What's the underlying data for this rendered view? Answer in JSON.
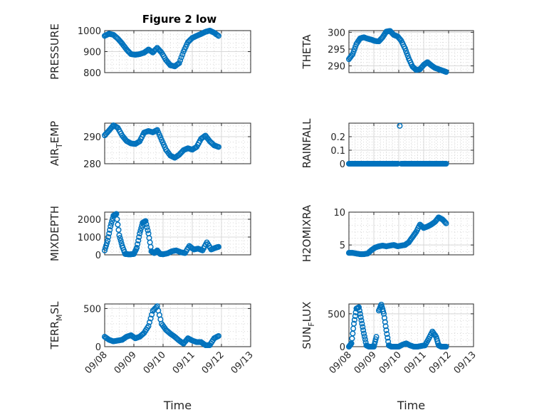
{
  "figure_title": "Figure 2 low",
  "colors": {
    "marker": "#0072BD",
    "axis": "#262626",
    "grid": "#d8d8d8",
    "background": "#ffffff"
  },
  "chart_data": [
    {
      "type": "scatter",
      "id": "pressure",
      "ylabel": {
        "main": "PRESSURE"
      },
      "ylim": [
        800,
        1000
      ],
      "yticks": [
        800,
        900,
        1000
      ],
      "yticklabels": [
        "800",
        "900",
        "1000"
      ],
      "xlim": [
        0,
        5
      ],
      "xticklabels": [
        "09/08",
        "09/09",
        "09/10",
        "09/11",
        "09/12",
        "09/13"
      ],
      "show_xticklabels": false,
      "xlabel": "",
      "grid": true,
      "x": [
        0,
        0.15,
        0.3,
        0.45,
        0.6,
        0.75,
        0.9,
        1.05,
        1.2,
        1.35,
        1.5,
        1.65,
        1.8,
        1.95,
        2.1,
        2.25,
        2.4,
        2.55,
        2.7,
        2.85,
        3.0,
        3.15,
        3.3,
        3.45,
        3.6,
        3.75,
        3.9
      ],
      "y": [
        975,
        985,
        980,
        962,
        938,
        910,
        888,
        885,
        888,
        895,
        910,
        896,
        918,
        895,
        860,
        835,
        830,
        845,
        900,
        945,
        965,
        975,
        984,
        994,
        1000,
        990,
        975
      ]
    },
    {
      "type": "scatter",
      "id": "theta",
      "ylabel": {
        "main": "THETA"
      },
      "ylim": [
        288,
        300.5
      ],
      "yticks": [
        290,
        295,
        300
      ],
      "yticklabels": [
        "290",
        "295",
        "300"
      ],
      "xlim": [
        0,
        5
      ],
      "xticklabels": [
        "09/08",
        "09/09",
        "09/10",
        "09/11",
        "09/12",
        "09/13"
      ],
      "show_xticklabels": false,
      "xlabel": "",
      "grid": true,
      "x": [
        0,
        0.15,
        0.3,
        0.45,
        0.6,
        0.75,
        0.9,
        1.05,
        1.2,
        1.35,
        1.5,
        1.65,
        1.8,
        1.95,
        2.1,
        2.25,
        2.4,
        2.55,
        2.7,
        2.85,
        3.0,
        3.15,
        3.3,
        3.45,
        3.6,
        3.75,
        3.9
      ],
      "y": [
        292,
        293.5,
        296.5,
        298.2,
        298.5,
        298.1,
        297.8,
        297.4,
        297.3,
        298.5,
        300.2,
        300.4,
        299.2,
        298.8,
        297.5,
        295.2,
        292.2,
        289.8,
        288.8,
        289,
        290.3,
        291.1,
        290.2,
        289.4,
        289,
        288.6,
        288.2
      ]
    },
    {
      "type": "scatter",
      "id": "air_temp",
      "ylabel": {
        "main": "AIR",
        "sub": "T",
        "rest": "EMP"
      },
      "ylim": [
        280,
        295
      ],
      "yticks": [
        280,
        290
      ],
      "yticklabels": [
        "280",
        "290"
      ],
      "xlim": [
        0,
        5
      ],
      "xticklabels": [
        "09/08",
        "09/09",
        "09/10",
        "09/11",
        "09/12",
        "09/13"
      ],
      "show_xticklabels": false,
      "xlabel": "",
      "grid": true,
      "x": [
        0,
        0.15,
        0.3,
        0.45,
        0.6,
        0.75,
        0.9,
        1.05,
        1.2,
        1.35,
        1.5,
        1.65,
        1.8,
        1.95,
        2.1,
        2.25,
        2.4,
        2.55,
        2.7,
        2.85,
        3.0,
        3.15,
        3.3,
        3.45,
        3.6,
        3.75,
        3.9
      ],
      "y": [
        290.5,
        292.3,
        294.2,
        293.3,
        290.4,
        288.4,
        287.5,
        287.3,
        288.3,
        291.5,
        292.1,
        291.6,
        292.5,
        288.8,
        285.2,
        283,
        282.2,
        283.3,
        285,
        285.7,
        285.2,
        286.2,
        289.2,
        290.4,
        288.3,
        286.8,
        286.2
      ]
    },
    {
      "type": "scatter",
      "id": "rainfall",
      "ylabel": {
        "main": "RAINFALL"
      },
      "ylim": [
        0,
        0.3
      ],
      "yticks": [
        0,
        0.1,
        0.2
      ],
      "yticklabels": [
        "0",
        "0.1",
        "0.2"
      ],
      "xlim": [
        0,
        5
      ],
      "xticklabels": [
        "09/08",
        "09/09",
        "09/10",
        "09/11",
        "09/12",
        "09/13"
      ],
      "show_xticklabels": false,
      "xlabel": "",
      "grid": true,
      "x": [
        0,
        0.15,
        0.3,
        0.45,
        0.6,
        0.75,
        0.9,
        1.05,
        1.2,
        1.35,
        1.5,
        1.65,
        1.8,
        1.95,
        2.04,
        2.1,
        2.25,
        2.4,
        2.55,
        2.7,
        2.85,
        3.0,
        3.15,
        3.3,
        3.45,
        3.6,
        3.75,
        3.9
      ],
      "y": [
        0,
        0,
        0,
        0,
        0,
        0,
        0,
        0,
        0,
        0,
        0,
        0,
        0,
        0,
        0.28,
        0,
        0,
        0,
        0,
        0,
        0,
        0,
        0,
        0,
        0,
        0,
        0,
        0
      ]
    },
    {
      "type": "scatter",
      "id": "mixdepth",
      "ylabel": {
        "main": "MIXDEPTH"
      },
      "ylim": [
        0,
        2400
      ],
      "yticks": [
        0,
        1000,
        2000
      ],
      "yticklabels": [
        "0",
        "1000",
        "2000"
      ],
      "xlim": [
        0,
        5
      ],
      "xticklabels": [
        "09/08",
        "09/09",
        "09/10",
        "09/11",
        "09/12",
        "09/13"
      ],
      "show_xticklabels": false,
      "xlabel": "",
      "grid": true,
      "x": [
        0,
        0.1,
        0.2,
        0.3,
        0.4,
        0.5,
        0.6,
        0.7,
        0.8,
        0.9,
        1.0,
        1.1,
        1.2,
        1.3,
        1.4,
        1.5,
        1.6,
        1.7,
        1.8,
        1.9,
        2.0,
        2.15,
        2.3,
        2.45,
        2.6,
        2.75,
        2.9,
        3.05,
        3.2,
        3.35,
        3.5,
        3.65,
        3.8,
        3.9
      ],
      "y": [
        250,
        800,
        1600,
        2200,
        2300,
        1100,
        500,
        50,
        30,
        30,
        50,
        400,
        1200,
        1800,
        1900,
        1200,
        200,
        100,
        250,
        50,
        30,
        80,
        200,
        250,
        150,
        100,
        500,
        300,
        350,
        250,
        700,
        300,
        400,
        450
      ]
    },
    {
      "type": "scatter",
      "id": "h2omixra",
      "ylabel": {
        "main": "H2OMIXRA"
      },
      "ylim": [
        3.5,
        10
      ],
      "yticks": [
        5,
        10
      ],
      "yticklabels": [
        "5",
        "10"
      ],
      "xlim": [
        0,
        5
      ],
      "xticklabels": [
        "09/08",
        "09/09",
        "09/10",
        "09/11",
        "09/12",
        "09/13"
      ],
      "show_xticklabels": false,
      "xlabel": "",
      "grid": true,
      "x": [
        0,
        0.15,
        0.3,
        0.45,
        0.6,
        0.75,
        0.9,
        1.05,
        1.2,
        1.35,
        1.5,
        1.65,
        1.8,
        1.95,
        2.1,
        2.25,
        2.4,
        2.55,
        2.7,
        2.85,
        3.0,
        3.15,
        3.3,
        3.45,
        3.6,
        3.75,
        3.9
      ],
      "y": [
        3.8,
        3.8,
        3.7,
        3.6,
        3.6,
        3.7,
        4.2,
        4.6,
        4.8,
        4.9,
        4.8,
        4.9,
        5.0,
        4.8,
        4.9,
        5.0,
        5.4,
        6.2,
        7.0,
        8.1,
        7.6,
        7.8,
        8.1,
        8.5,
        9.2,
        8.9,
        8.3
      ]
    },
    {
      "type": "scatter",
      "id": "terr_msl",
      "ylabel": {
        "main": "TERR",
        "sub": "M",
        "rest": "SL"
      },
      "ylim": [
        0,
        560
      ],
      "yticks": [
        0,
        500
      ],
      "yticklabels": [
        "0",
        "500"
      ],
      "xlim": [
        0,
        5
      ],
      "xticklabels": [
        "09/08",
        "09/09",
        "09/10",
        "09/11",
        "09/12",
        "09/13"
      ],
      "show_xticklabels": true,
      "xlabel": "Time",
      "grid": true,
      "x": [
        0,
        0.15,
        0.3,
        0.45,
        0.6,
        0.75,
        0.9,
        1.05,
        1.2,
        1.35,
        1.5,
        1.65,
        1.8,
        1.95,
        2.1,
        2.25,
        2.4,
        2.55,
        2.7,
        2.85,
        3.0,
        3.15,
        3.3,
        3.45,
        3.6,
        3.75,
        3.9
      ],
      "y": [
        130,
        90,
        70,
        80,
        90,
        130,
        150,
        110,
        130,
        180,
        270,
        470,
        530,
        300,
        220,
        170,
        130,
        80,
        40,
        110,
        80,
        60,
        60,
        20,
        20,
        110,
        140
      ]
    },
    {
      "type": "scatter",
      "id": "sun_flux",
      "ylabel": {
        "main": "SUN",
        "sub": "F",
        "rest": "LUX"
      },
      "ylim": [
        0,
        650
      ],
      "yticks": [
        0,
        500
      ],
      "yticklabels": [
        "0",
        "500"
      ],
      "xlim": [
        0,
        5
      ],
      "xticklabels": [
        "09/08",
        "09/09",
        "09/10",
        "09/11",
        "09/12",
        "09/13"
      ],
      "show_xticklabels": true,
      "xlabel": "Time",
      "grid": true,
      "x": [
        0,
        0.1,
        0.2,
        0.3,
        0.4,
        0.5,
        0.6,
        0.7,
        0.8,
        0.9,
        1.0,
        1.1,
        1.2,
        1.3,
        1.4,
        1.5,
        1.6,
        1.7,
        1.8,
        1.9,
        2.0,
        2.15,
        2.3,
        2.45,
        2.6,
        2.75,
        2.9,
        3.05,
        3.2,
        3.35,
        3.5,
        3.6,
        3.7,
        3.8,
        3.9
      ],
      "y": [
        0,
        50,
        350,
        580,
        600,
        400,
        200,
        20,
        0,
        0,
        0,
        150,
        550,
        640,
        500,
        250,
        20,
        0,
        0,
        0,
        0,
        30,
        50,
        20,
        0,
        0,
        10,
        20,
        120,
        230,
        150,
        20,
        0,
        0,
        0
      ]
    }
  ]
}
